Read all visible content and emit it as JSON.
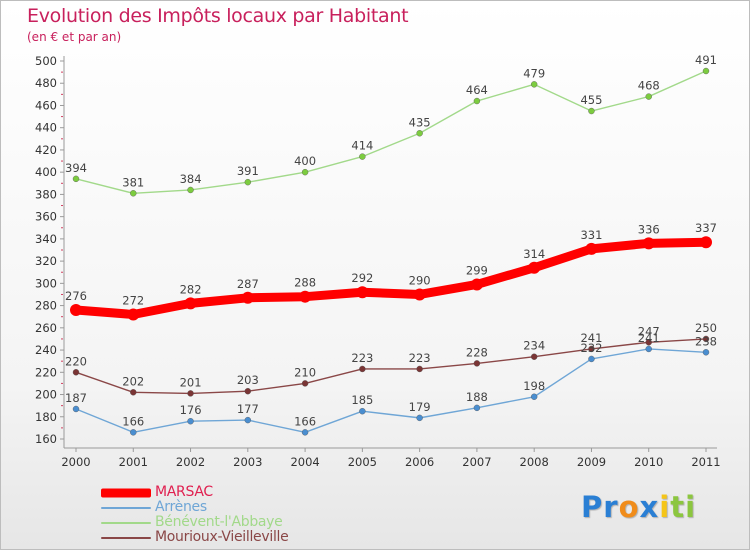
{
  "chart_data": {
    "type": "line",
    "title": "Evolution des Impôts locaux par Habitant",
    "subtitle": "(en € et par an)",
    "x": [
      "2000",
      "2001",
      "2002",
      "2003",
      "2004",
      "2005",
      "2006",
      "2007",
      "2008",
      "2009",
      "2010",
      "2011"
    ],
    "ylim": [
      160,
      500
    ],
    "yticks": [
      160,
      180,
      200,
      220,
      240,
      260,
      280,
      300,
      320,
      340,
      360,
      380,
      400,
      420,
      440,
      460,
      480,
      500
    ],
    "grid": false,
    "legend_position": "bottom-left",
    "series": [
      {
        "name": "MARSAC",
        "values": [
          276,
          272,
          282,
          287,
          288,
          292,
          290,
          299,
          314,
          331,
          336,
          337
        ],
        "color": "#ff0000",
        "style": "thick"
      },
      {
        "name": "Arrènes",
        "values": [
          187,
          166,
          176,
          177,
          166,
          185,
          179,
          188,
          198,
          232,
          241,
          238
        ],
        "color": "#6fa6d6",
        "marker": "#4a8ed0",
        "style": "thin"
      },
      {
        "name": "Bénévent-l'Abbaye",
        "values": [
          394,
          381,
          384,
          391,
          400,
          414,
          435,
          464,
          479,
          455,
          468,
          491
        ],
        "color": "#a2d98a",
        "marker": "#7ccc3f",
        "style": "thin"
      },
      {
        "name": "Mourioux-Vieilleville",
        "values": [
          220,
          202,
          201,
          203,
          210,
          223,
          223,
          228,
          234,
          241,
          247,
          250
        ],
        "color": "#8a4747",
        "marker": "#7a3535",
        "style": "thin"
      }
    ]
  },
  "logo": {
    "letters": [
      "P",
      "r",
      "o",
      "x",
      "i",
      "t",
      "i"
    ],
    "colors": [
      "#2a7fd4",
      "#2a7fd4",
      "#f08c1a",
      "#2a7fd4",
      "#f5c518",
      "#8cc63f",
      "#8cc63f"
    ]
  }
}
